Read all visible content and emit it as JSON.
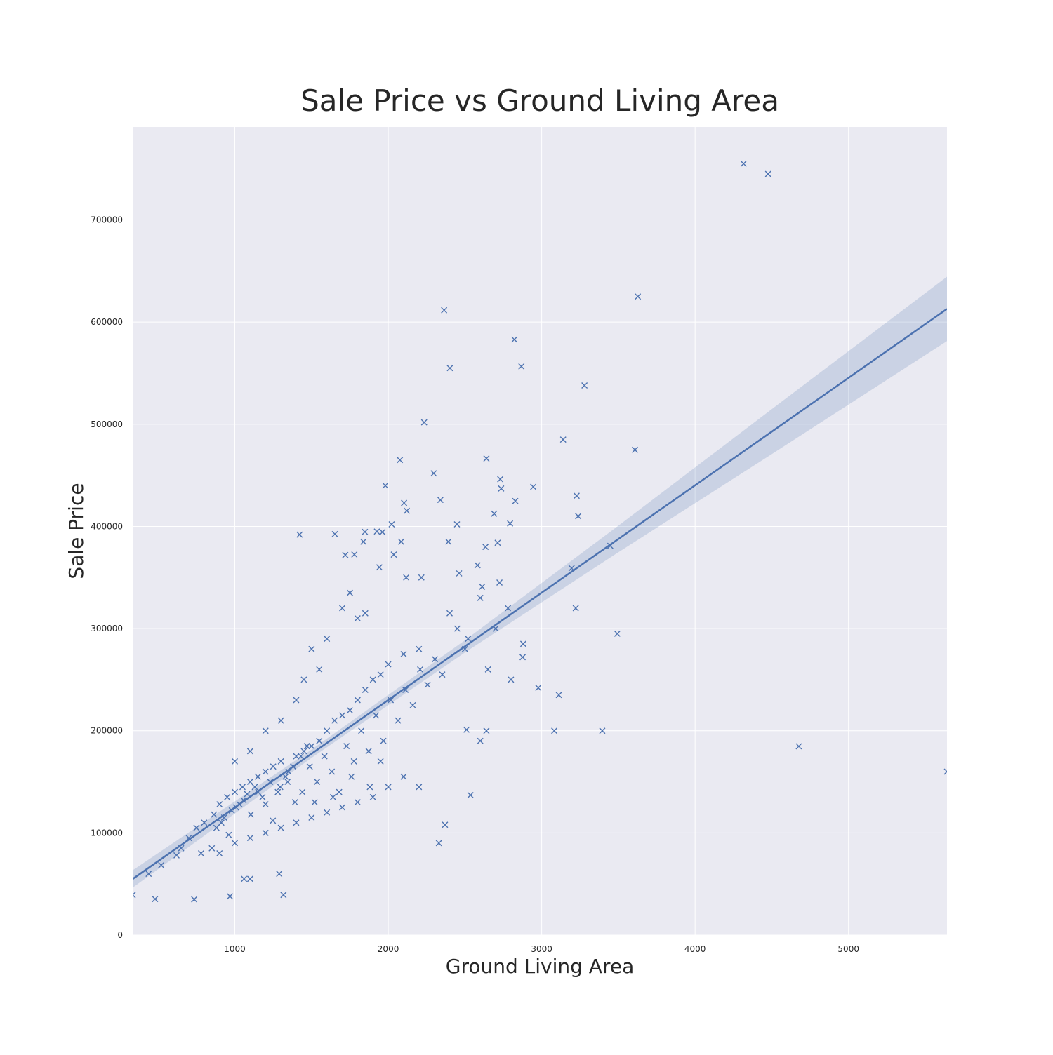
{
  "chart_data": {
    "type": "scatter",
    "title": "Sale Price vs Ground Living Area",
    "xlabel": "Ground Living Area",
    "ylabel": "Sale Price",
    "color": "#4c72b0",
    "marker": "x",
    "grid": true,
    "xlim": [
      334,
      5642
    ],
    "ylim": [
      0,
      791000
    ],
    "xticks": [
      1000,
      2000,
      3000,
      4000,
      5000
    ],
    "yticks": [
      0,
      100000,
      200000,
      300000,
      400000,
      500000,
      600000,
      700000
    ],
    "x": [
      4316,
      4476,
      3627,
      2364,
      2822,
      2402,
      2868,
      3279,
      2234,
      3140,
      3608,
      2640,
      2076,
      2296,
      2730,
      2945,
      1981,
      2736,
      3228,
      2828,
      2103,
      2340,
      2121,
      2690,
      3238,
      2794,
      2448,
      2022,
      1422,
      1652,
      1848,
      1926,
      1962,
      2392,
      2084,
      1838,
      3447,
      2634,
      2713,
      1779,
      2036,
      1720,
      3195,
      2582,
      1942,
      2462,
      2216,
      2117,
      2725,
      2612,
      3222,
      3493,
      4676,
      5642,
      3082,
      3395,
      2978,
      3112,
      2876,
      2880,
      2520,
      2600,
      2640,
      2510,
      2370,
      2330,
      2536,
      334,
      480,
      438,
      520,
      735,
      968,
      1317,
      1289,
      1060,
      1100,
      900,
      950,
      1000,
      1050,
      1100,
      1150,
      1200,
      1250,
      1300,
      1350,
      1400,
      1450,
      1500,
      1550,
      1600,
      1650,
      1700,
      1750,
      1800,
      1850,
      1900,
      1950,
      2000,
      2100,
      2200,
      864,
      912,
      960,
      1008,
      1056,
      1104,
      1152,
      1200,
      1248,
      1296,
      1344,
      1392,
      1440,
      1488,
      1536,
      1584,
      1632,
      1680,
      1728,
      1776,
      1824,
      1872,
      1920,
      1968,
      2016,
      2064,
      2112,
      2160,
      2208,
      2256,
      2304,
      2352,
      2400,
      2450,
      2500,
      2600,
      2650,
      2700,
      2780,
      2800,
      1500,
      1600,
      1700,
      1750,
      1800,
      1850,
      1550,
      1450,
      1400,
      1300,
      1200,
      1100,
      1000,
      800,
      750,
      700,
      650,
      620,
      780,
      850,
      900,
      1000,
      1100,
      1200,
      1300,
      1400,
      1500,
      1600,
      1700,
      1800,
      1900,
      2000,
      2100,
      2200,
      1950,
      1880,
      1760,
      1640,
      1520,
      1470,
      1430,
      1380,
      1330,
      1280,
      1230,
      1180,
      1130,
      1080,
      1030,
      980,
      930,
      880
    ],
    "values": [
      755000,
      745000,
      625000,
      611657,
      582933,
      555000,
      556581,
      538000,
      501837,
      485000,
      475000,
      466500,
      465000,
      451950,
      446261,
      438780,
      440000,
      437154,
      430000,
      424870,
      423000,
      426000,
      415298,
      412500,
      410000,
      402861,
      402000,
      402000,
      392000,
      392500,
      394617,
      395000,
      394432,
      385000,
      385000,
      385000,
      381000,
      380000,
      383970,
      372500,
      372402,
      372000,
      359100,
      361919,
      360000,
      354000,
      350000,
      350000,
      345000,
      341000,
      320000,
      295000,
      184750,
      160000,
      200000,
      200000,
      242000,
      235000,
      272000,
      285000,
      290000,
      190000,
      200000,
      201000,
      108000,
      90000,
      137000,
      39300,
      35311,
      60000,
      68400,
      34900,
      37900,
      39300,
      60000,
      55000,
      55000,
      128000,
      135000,
      140000,
      145000,
      150000,
      155000,
      160000,
      165000,
      170000,
      160000,
      175000,
      180000,
      185000,
      190000,
      200000,
      210000,
      215000,
      220000,
      230000,
      240000,
      250000,
      255000,
      265000,
      275000,
      280000,
      118000,
      110000,
      98000,
      125000,
      132000,
      118000,
      140000,
      128000,
      112000,
      145000,
      150000,
      130000,
      140000,
      165000,
      150000,
      175000,
      160000,
      140000,
      185000,
      170000,
      200000,
      180000,
      215000,
      190000,
      230000,
      210000,
      240000,
      225000,
      260000,
      245000,
      270000,
      255000,
      315000,
      300000,
      280000,
      330000,
      260000,
      300000,
      320000,
      250000,
      280000,
      290000,
      320000,
      335000,
      310000,
      315000,
      260000,
      250000,
      230000,
      210000,
      200000,
      180000,
      170000,
      110000,
      105000,
      95000,
      85000,
      78000,
      80000,
      85000,
      80000,
      90000,
      95000,
      100000,
      105000,
      110000,
      115000,
      120000,
      125000,
      130000,
      135000,
      145000,
      155000,
      145000,
      170000,
      145000,
      155000,
      135000,
      130000,
      185000,
      175000,
      165000,
      155000,
      140000,
      150000,
      135000,
      145000,
      138000,
      128000,
      122000,
      115000,
      105000
    ],
    "fit": {
      "x": [
        334,
        1500,
        2500,
        3500,
        4500,
        5642
      ],
      "y": [
        54900,
        177500,
        282600,
        387700,
        492800,
        612900
      ],
      "ci_lower": [
        46400,
        173500,
        276600,
        374700,
        470800,
        581400
      ],
      "ci_upper": [
        63400,
        181500,
        288600,
        400700,
        514800,
        644400
      ]
    }
  }
}
